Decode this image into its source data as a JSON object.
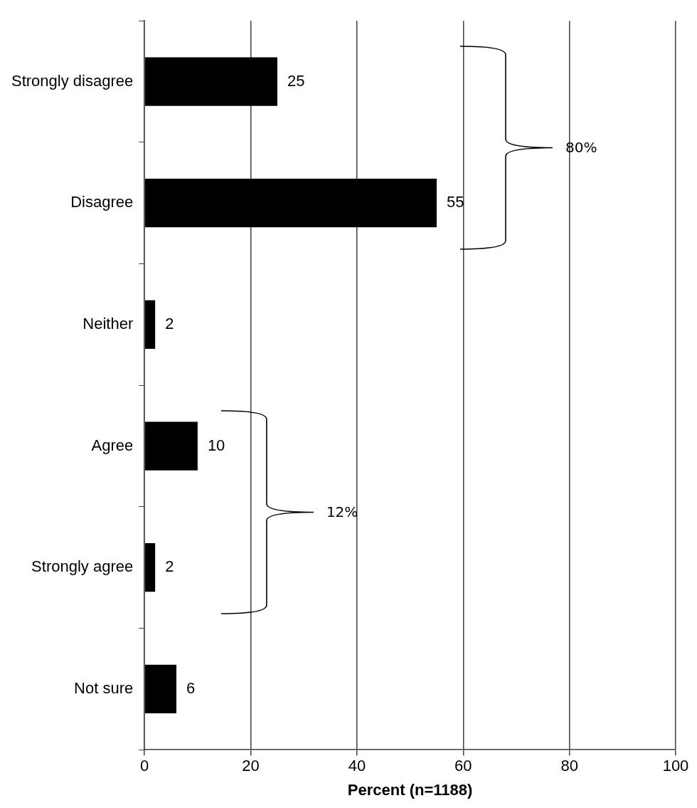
{
  "chart_data": {
    "type": "bar",
    "orientation": "horizontal",
    "xlabel": "Percent (n=1188)",
    "categories": [
      "Strongly disagree",
      "Disagree",
      "Neither",
      "Agree",
      "Strongly agree",
      "Not sure"
    ],
    "values": [
      25,
      55,
      2,
      10,
      2,
      6
    ],
    "color": "#000000",
    "xlim": [
      0,
      100
    ],
    "xticks": [
      0,
      20,
      40,
      60,
      80,
      100
    ],
    "grid": "x",
    "data_labels": true,
    "legend": false,
    "annotations": [
      "80%",
      "12%"
    ]
  }
}
